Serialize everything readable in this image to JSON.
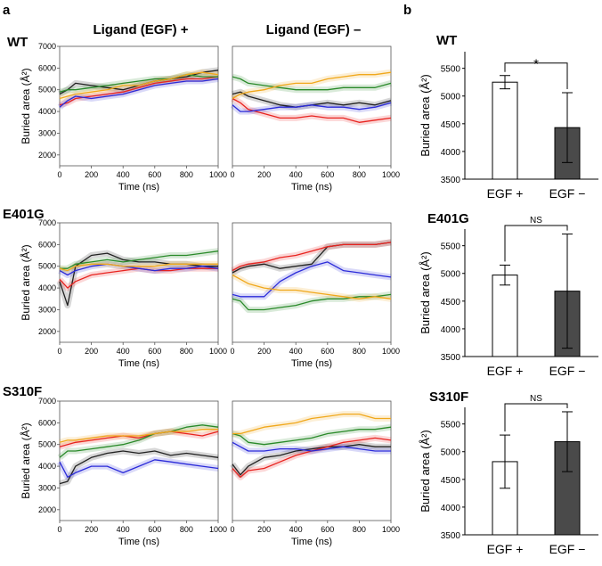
{
  "panel_labels": {
    "a": "a",
    "b": "b"
  },
  "column_headers": {
    "plus": "Ligand (EGF) +",
    "minus": "Ligand (EGF) –"
  },
  "colors": {
    "red": "#e8231f",
    "blue": "#2b2bd9",
    "green": "#2a8a2a",
    "orange": "#f0a81c",
    "black": "#222222",
    "bar_dark": "#4a4a4a"
  },
  "chart_data": [
    {
      "type": "line",
      "id": "wt-plus",
      "row_label": "WT",
      "column": "Ligand (EGF) +",
      "xlabel": "Time (ns)",
      "ylabel": "Buried area (Å²)",
      "xlim": [
        0,
        1000
      ],
      "ylim": [
        1500,
        7000
      ],
      "xticks": [
        "0",
        "200",
        "400",
        "600",
        "800",
        "1000"
      ],
      "yticks": [
        "2000",
        "3000",
        "4000",
        "5000",
        "6000",
        "7000"
      ],
      "x": [
        0,
        50,
        100,
        200,
        300,
        400,
        500,
        600,
        700,
        800,
        900,
        1000
      ],
      "series": [
        {
          "name": "black",
          "values": [
            4800,
            5000,
            5300,
            5200,
            5100,
            5000,
            5200,
            5400,
            5500,
            5600,
            5800,
            5900
          ]
        },
        {
          "name": "red",
          "values": [
            4300,
            4400,
            4600,
            4700,
            4800,
            4900,
            5100,
            5300,
            5400,
            5500,
            5500,
            5600
          ]
        },
        {
          "name": "blue",
          "values": [
            4200,
            4500,
            4700,
            4600,
            4700,
            4800,
            5000,
            5200,
            5300,
            5400,
            5400,
            5500
          ]
        },
        {
          "name": "green",
          "values": [
            4900,
            5000,
            5000,
            5100,
            5200,
            5300,
            5400,
            5500,
            5500,
            5700,
            5600,
            5600
          ]
        },
        {
          "name": "orange",
          "values": [
            4600,
            4700,
            4800,
            4900,
            5000,
            5200,
            5200,
            5400,
            5500,
            5700,
            5800,
            5700
          ]
        }
      ]
    },
    {
      "type": "line",
      "id": "wt-minus",
      "row_label": "WT",
      "column": "Ligand (EGF) –",
      "xlabel": "Time (ns)",
      "ylabel": "",
      "xlim": [
        0,
        1000
      ],
      "ylim": [
        1500,
        7000
      ],
      "xticks": [
        "0",
        "200",
        "400",
        "600",
        "800",
        "1000"
      ],
      "yticks": [],
      "x": [
        0,
        50,
        100,
        200,
        300,
        400,
        500,
        600,
        700,
        800,
        900,
        1000
      ],
      "series": [
        {
          "name": "black",
          "values": [
            4800,
            4900,
            4700,
            4500,
            4300,
            4200,
            4300,
            4400,
            4300,
            4400,
            4300,
            4500
          ]
        },
        {
          "name": "red",
          "values": [
            4600,
            4400,
            4100,
            3900,
            3700,
            3700,
            3800,
            3700,
            3700,
            3500,
            3600,
            3700
          ]
        },
        {
          "name": "blue",
          "values": [
            4300,
            4000,
            4000,
            4100,
            4200,
            4200,
            4300,
            4200,
            4200,
            4100,
            4200,
            4400
          ]
        },
        {
          "name": "green",
          "values": [
            5600,
            5500,
            5300,
            5200,
            5100,
            5000,
            5000,
            5000,
            5100,
            5100,
            5100,
            5300
          ]
        },
        {
          "name": "orange",
          "values": [
            4600,
            4800,
            4900,
            5000,
            5200,
            5300,
            5300,
            5500,
            5600,
            5700,
            5700,
            5800
          ]
        }
      ]
    },
    {
      "type": "line",
      "id": "e401g-plus",
      "row_label": "E401G",
      "column": "Ligand (EGF) +",
      "xlabel": "Time (ns)",
      "ylabel": "Buried area (Å²)",
      "xlim": [
        0,
        1000
      ],
      "ylim": [
        1500,
        7000
      ],
      "xticks": [
        "0",
        "200",
        "400",
        "600",
        "800",
        "1000"
      ],
      "yticks": [
        "2000",
        "3000",
        "4000",
        "5000",
        "6000",
        "7000"
      ],
      "x": [
        0,
        50,
        100,
        200,
        300,
        400,
        500,
        600,
        700,
        800,
        900,
        1000
      ],
      "series": [
        {
          "name": "black",
          "values": [
            4300,
            3200,
            5000,
            5500,
            5600,
            5300,
            5200,
            5200,
            5100,
            5100,
            5000,
            5000
          ]
        },
        {
          "name": "red",
          "values": [
            4400,
            4000,
            4300,
            4600,
            4700,
            4800,
            4900,
            4800,
            4800,
            4900,
            4900,
            4900
          ]
        },
        {
          "name": "blue",
          "values": [
            4800,
            4600,
            4800,
            5000,
            5100,
            5000,
            4900,
            4800,
            4900,
            4900,
            5000,
            4900
          ]
        },
        {
          "name": "green",
          "values": [
            4900,
            4900,
            5100,
            5200,
            5300,
            5200,
            5300,
            5400,
            5500,
            5500,
            5600,
            5700
          ]
        },
        {
          "name": "orange",
          "values": [
            4900,
            4800,
            5000,
            5100,
            5100,
            5000,
            5000,
            5000,
            5100,
            5100,
            5100,
            5100
          ]
        }
      ]
    },
    {
      "type": "line",
      "id": "e401g-minus",
      "row_label": "E401G",
      "column": "Ligand (EGF) –",
      "xlabel": "Time (ns)",
      "ylabel": "",
      "xlim": [
        0,
        1000
      ],
      "ylim": [
        1500,
        7000
      ],
      "xticks": [
        "0",
        "200",
        "400",
        "600",
        "800",
        "1000"
      ],
      "yticks": [],
      "x": [
        0,
        50,
        100,
        200,
        300,
        400,
        500,
        600,
        700,
        800,
        900,
        1000
      ],
      "series": [
        {
          "name": "black",
          "values": [
            4700,
            4900,
            5000,
            5100,
            4900,
            5000,
            5100,
            5900,
            6000,
            6000,
            6000,
            6100
          ]
        },
        {
          "name": "red",
          "values": [
            4800,
            5000,
            5100,
            5200,
            5400,
            5500,
            5700,
            5900,
            6000,
            6000,
            6000,
            6100
          ]
        },
        {
          "name": "blue",
          "values": [
            3700,
            3600,
            3600,
            3600,
            4300,
            4700,
            5000,
            5200,
            4800,
            4700,
            4600,
            4500
          ]
        },
        {
          "name": "green",
          "values": [
            3500,
            3400,
            3000,
            3000,
            3100,
            3200,
            3400,
            3500,
            3500,
            3600,
            3600,
            3700
          ]
        },
        {
          "name": "orange",
          "values": [
            4600,
            4400,
            4200,
            4000,
            3900,
            3900,
            3800,
            3700,
            3600,
            3500,
            3600,
            3500
          ]
        }
      ]
    },
    {
      "type": "line",
      "id": "s310f-plus",
      "row_label": "S310F",
      "column": "Ligand (EGF) +",
      "xlabel": "Time (ns)",
      "ylabel": "Buried area (Å²)",
      "xlim": [
        0,
        1000
      ],
      "ylim": [
        1500,
        7000
      ],
      "xticks": [
        "0",
        "200",
        "400",
        "600",
        "800",
        "1000"
      ],
      "yticks": [
        "2000",
        "3000",
        "4000",
        "5000",
        "6000",
        "7000"
      ],
      "x": [
        0,
        50,
        100,
        200,
        300,
        400,
        500,
        600,
        700,
        800,
        900,
        1000
      ],
      "series": [
        {
          "name": "black",
          "values": [
            3200,
            3300,
            4000,
            4400,
            4600,
            4700,
            4600,
            4700,
            4500,
            4600,
            4500,
            4400
          ]
        },
        {
          "name": "red",
          "values": [
            4900,
            5000,
            5100,
            5200,
            5300,
            5400,
            5300,
            5500,
            5600,
            5500,
            5400,
            5600
          ]
        },
        {
          "name": "blue",
          "values": [
            4200,
            3500,
            3700,
            4000,
            4000,
            3700,
            4000,
            4300,
            4200,
            4100,
            4000,
            3900
          ]
        },
        {
          "name": "green",
          "values": [
            4400,
            4700,
            4700,
            4800,
            4900,
            5000,
            5200,
            5500,
            5600,
            5800,
            5900,
            5800
          ]
        },
        {
          "name": "orange",
          "values": [
            5100,
            5200,
            5200,
            5300,
            5400,
            5400,
            5400,
            5500,
            5600,
            5600,
            5700,
            5700
          ]
        }
      ]
    },
    {
      "type": "line",
      "id": "s310f-minus",
      "row_label": "S310F",
      "column": "Ligand (EGF) –",
      "xlabel": "Time (ns)",
      "ylabel": "",
      "xlim": [
        0,
        1000
      ],
      "ylim": [
        1500,
        7000
      ],
      "xticks": [
        "0",
        "200",
        "400",
        "600",
        "800",
        "1000"
      ],
      "yticks": [],
      "x": [
        0,
        50,
        100,
        200,
        300,
        400,
        500,
        600,
        700,
        800,
        900,
        1000
      ],
      "series": [
        {
          "name": "black",
          "values": [
            4100,
            3600,
            4000,
            4400,
            4500,
            4700,
            4800,
            4900,
            4900,
            5000,
            4900,
            4900
          ]
        },
        {
          "name": "red",
          "values": [
            3900,
            3500,
            3800,
            3900,
            4200,
            4500,
            4700,
            4900,
            5100,
            5200,
            5300,
            5200
          ]
        },
        {
          "name": "blue",
          "values": [
            5100,
            4900,
            4700,
            4700,
            4800,
            4800,
            4700,
            4800,
            4900,
            4800,
            4700,
            4700
          ]
        },
        {
          "name": "green",
          "values": [
            5500,
            5400,
            5100,
            5000,
            5100,
            5200,
            5300,
            5500,
            5600,
            5700,
            5700,
            5800
          ]
        },
        {
          "name": "orange",
          "values": [
            5500,
            5500,
            5600,
            5800,
            5900,
            6000,
            6200,
            6300,
            6400,
            6400,
            6200,
            6200
          ]
        }
      ]
    },
    {
      "type": "bar",
      "id": "wt-bar",
      "row_label": "WT",
      "categories": [
        "EGF +",
        "EGF −"
      ],
      "values": [
        5250,
        4430
      ],
      "errors": [
        120,
        630
      ],
      "ylabel": "Buried area (Å²)",
      "ylim": [
        3500,
        5800
      ],
      "yticks": [
        "3500",
        "4000",
        "4500",
        "5000",
        "5500"
      ],
      "significance": "*"
    },
    {
      "type": "bar",
      "id": "e401g-bar",
      "row_label": "E401G",
      "categories": [
        "EGF +",
        "EGF −"
      ],
      "values": [
        4970,
        4680
      ],
      "errors": [
        180,
        1030
      ],
      "ylabel": "Buried area (Å²)",
      "ylim": [
        3500,
        5800
      ],
      "yticks": [
        "3500",
        "4000",
        "4500",
        "5000",
        "5500"
      ],
      "significance": "NS"
    },
    {
      "type": "bar",
      "id": "s310f-bar",
      "row_label": "S310F",
      "categories": [
        "EGF +",
        "EGF −"
      ],
      "values": [
        4820,
        5180
      ],
      "errors": [
        480,
        540
      ],
      "ylabel": "Buried area (Å²)",
      "ylim": [
        3500,
        5800
      ],
      "yticks": [
        "3500",
        "4000",
        "4500",
        "5000",
        "5500"
      ],
      "significance": "NS"
    }
  ]
}
